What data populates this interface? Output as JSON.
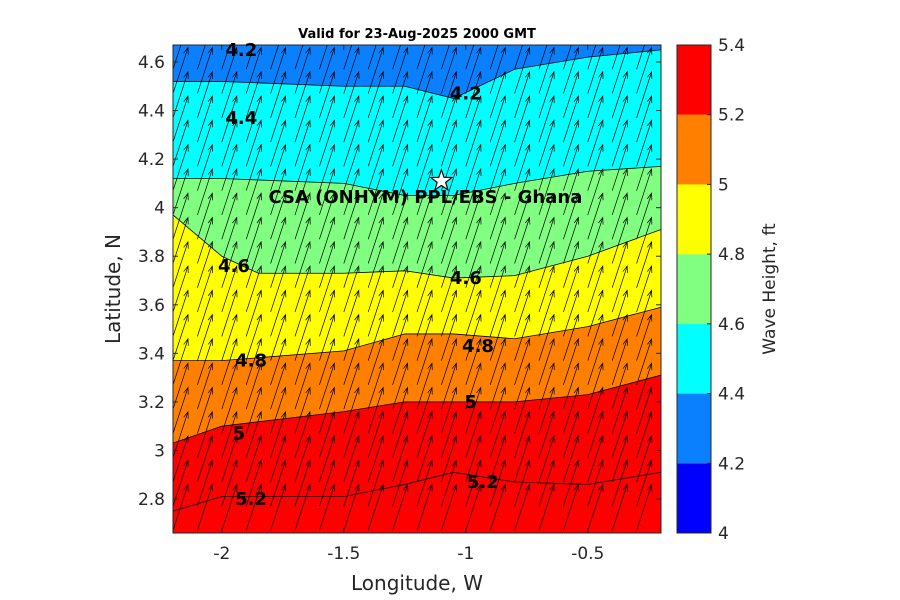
{
  "chart_data": {
    "type": "contour",
    "title": "Valid for 23-Aug-2025 2000 GMT",
    "xlabel": "Longitude, W",
    "ylabel": "Latitude, N",
    "xlim": [
      -2.2,
      -0.2
    ],
    "ylim": [
      2.66,
      4.67
    ],
    "x_ticks": [
      -2,
      -1.5,
      -1,
      -0.5
    ],
    "x_tick_labels": [
      "-2",
      "-1.5",
      "-1",
      "-0.5"
    ],
    "y_ticks": [
      2.8,
      3.0,
      3.2,
      3.4,
      3.6,
      3.8,
      4.0,
      4.2,
      4.4,
      4.6
    ],
    "y_tick_labels": [
      "2.8",
      "3",
      "3.2",
      "3.4",
      "3.6",
      "3.8",
      "4",
      "4.2",
      "4.4",
      "4.6"
    ],
    "colorbar": {
      "label": "Wave Height, ft",
      "range": [
        4.0,
        5.4
      ],
      "ticks": [
        4.0,
        4.2,
        4.4,
        4.6,
        4.8,
        5.0,
        5.2,
        5.4
      ],
      "tick_labels": [
        "4",
        "4.2",
        "4.4",
        "4.6",
        "4.8",
        "5",
        "5.2",
        "5.4"
      ],
      "colors": [
        "#0000ff",
        "#0a80ff",
        "#00ffff",
        "#80ff80",
        "#ffff00",
        "#ff8000",
        "#ff0000"
      ]
    },
    "contour_levels": [
      {
        "level": 4.2,
        "lons": [
          -2.2,
          -2.0,
          -1.5,
          -1.25,
          -1.05,
          -0.8,
          -0.5,
          -0.2
        ],
        "lats": [
          4.67,
          4.67,
          4.67,
          4.67,
          4.67,
          4.67,
          4.67,
          4.67
        ]
      },
      {
        "level": 4.4,
        "lons": [
          -2.2,
          -2.0,
          -1.5,
          -1.25,
          -1.05,
          -0.8,
          -0.5,
          -0.2
        ],
        "lats": [
          4.52,
          4.52,
          4.5,
          4.5,
          4.45,
          4.57,
          4.62,
          4.65
        ]
      },
      {
        "level": 4.6,
        "lons": [
          -2.2,
          -2.0,
          -1.5,
          -1.25,
          -1.05,
          -0.8,
          -0.5,
          -0.2
        ],
        "lats": [
          4.12,
          4.12,
          4.1,
          4.05,
          4.05,
          4.1,
          4.15,
          4.17
        ]
      },
      {
        "level": 4.8,
        "lons": [
          -2.2,
          -2.0,
          -1.85,
          -1.5,
          -1.25,
          -1.05,
          -0.8,
          -0.5,
          -0.2
        ],
        "lats": [
          3.97,
          3.8,
          3.73,
          3.73,
          3.74,
          3.71,
          3.72,
          3.8,
          3.91
        ]
      },
      {
        "level": 5.0,
        "lons": [
          -2.2,
          -2.0,
          -1.5,
          -1.25,
          -1.05,
          -0.8,
          -0.5,
          -0.2
        ],
        "lats": [
          3.37,
          3.37,
          3.41,
          3.48,
          3.48,
          3.46,
          3.51,
          3.59
        ]
      },
      {
        "level": 5.2,
        "lons": [
          -2.2,
          -2.0,
          -1.5,
          -1.25,
          -1.05,
          -0.8,
          -0.5,
          -0.2
        ],
        "lats": [
          3.03,
          3.1,
          3.16,
          3.2,
          3.2,
          3.2,
          3.23,
          3.31
        ]
      },
      {
        "level": 5.4,
        "lons": [
          -2.2,
          -2.0,
          -1.5,
          -1.25,
          -1.05,
          -0.8,
          -0.5,
          -0.2
        ],
        "lats": [
          2.75,
          2.81,
          2.81,
          2.86,
          2.91,
          2.87,
          2.86,
          2.91
        ]
      }
    ],
    "contour_labels": [
      {
        "text": "4.2",
        "lon": -1.92,
        "lat": 4.65
      },
      {
        "text": "4.2",
        "lon": -1.0,
        "lat": 4.47
      },
      {
        "text": "4.4",
        "lon": -1.92,
        "lat": 4.37
      },
      {
        "text": "4.6",
        "lon": -1.95,
        "lat": 3.76
      },
      {
        "text": "4.6",
        "lon": -1.0,
        "lat": 3.71
      },
      {
        "text": "4.8",
        "lon": -1.88,
        "lat": 3.37
      },
      {
        "text": "4.8",
        "lon": -0.95,
        "lat": 3.43
      },
      {
        "text": "5",
        "lon": -1.93,
        "lat": 3.07
      },
      {
        "text": "5",
        "lon": -0.98,
        "lat": 3.2
      },
      {
        "text": "5.2",
        "lon": -1.88,
        "lat": 2.8
      },
      {
        "text": "5.2",
        "lon": -0.93,
        "lat": 2.87
      }
    ],
    "site": {
      "label": "CSA (ONHYM) PPL/EBS  - Ghana",
      "lon": -1.1,
      "lat": 4.11,
      "marker": "star"
    },
    "vectors": {
      "lon_start": -2.2,
      "lon_step": 0.1,
      "lon_count": 21,
      "lat_start": 2.67,
      "lat_step": 0.1,
      "lat_count": 21,
      "direction": "north-north-east"
    }
  }
}
